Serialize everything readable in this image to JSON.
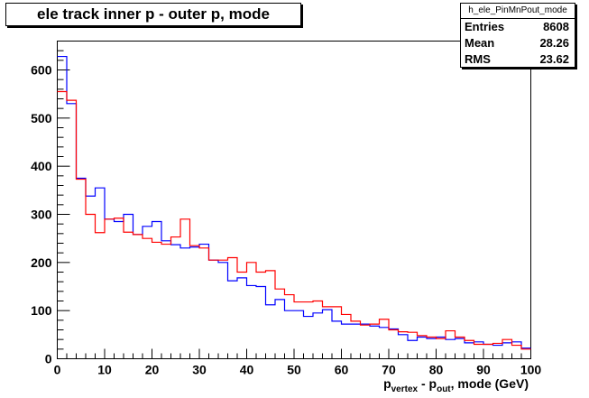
{
  "colors": {
    "series_blue": "#0000ff",
    "series_red": "#ff0000",
    "axis": "#000000"
  },
  "stats": {
    "name": "h_ele_PinMnPout_mode",
    "entries_label": "Entries",
    "entries_value": "8608",
    "mean_label": "Mean",
    "mean_value": "28.26",
    "rms_label": "RMS",
    "rms_value": "23.62"
  },
  "chart_data": {
    "type": "histogram",
    "title": "ele track inner p - outer p, mode",
    "xlabel": {
      "p": "p",
      "sub1": "vertex",
      "mid": " - p",
      "sub2": "out",
      "tail": ", mode (GeV)"
    },
    "xlim": [
      0,
      100
    ],
    "ylim": [
      0,
      660
    ],
    "x_ticks": [
      0,
      10,
      20,
      30,
      40,
      50,
      60,
      70,
      80,
      90,
      100
    ],
    "y_ticks": [
      0,
      100,
      200,
      300,
      400,
      500,
      600
    ],
    "bin_edges": [
      0,
      2,
      4,
      6,
      8,
      10,
      12,
      14,
      16,
      18,
      20,
      22,
      24,
      26,
      28,
      30,
      32,
      34,
      36,
      38,
      40,
      42,
      44,
      46,
      48,
      50,
      52,
      54,
      56,
      58,
      60,
      62,
      64,
      66,
      68,
      70,
      72,
      74,
      76,
      78,
      80,
      82,
      84,
      86,
      88,
      90,
      92,
      94,
      96,
      98,
      100
    ],
    "series": [
      {
        "color": "#0000ff",
        "values": [
          628,
          530,
          375,
          338,
          355,
          290,
          285,
          300,
          258,
          275,
          285,
          245,
          237,
          230,
          232,
          238,
          205,
          200,
          162,
          168,
          152,
          150,
          112,
          123,
          100,
          100,
          88,
          95,
          102,
          78,
          72,
          72,
          72,
          68,
          65,
          62,
          50,
          38,
          45,
          42,
          45,
          40,
          42,
          33,
          35,
          30,
          28,
          33,
          35,
          22
        ]
      },
      {
        "color": "#ff0000",
        "values": [
          555,
          537,
          373,
          300,
          262,
          290,
          292,
          263,
          258,
          250,
          242,
          238,
          253,
          290,
          235,
          230,
          205,
          205,
          210,
          180,
          200,
          180,
          183,
          145,
          133,
          118,
          118,
          120,
          108,
          108,
          92,
          78,
          70,
          72,
          82,
          60,
          56,
          55,
          48,
          45,
          42,
          58,
          45,
          38,
          30,
          30,
          32,
          40,
          28,
          20
        ]
      }
    ]
  }
}
